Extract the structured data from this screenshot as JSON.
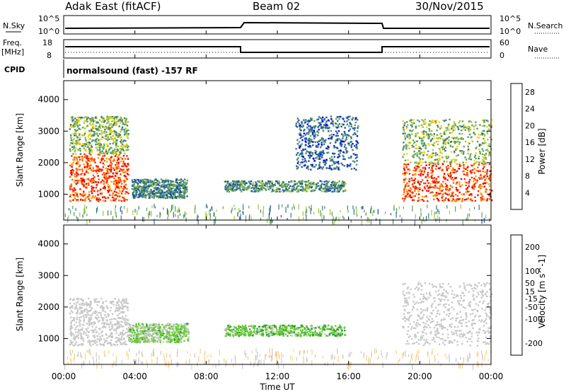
{
  "header": {
    "station": "Adak East (fitACF)",
    "beam": "Beam 02",
    "date": "30/Nov/2015"
  },
  "noise_panel": {
    "left_label": "N.Sky",
    "right_label": "N.Search",
    "ticks_left": [
      "10^5",
      "10^0"
    ],
    "ticks_right": [
      "10^5",
      "10^0"
    ]
  },
  "freq_panel": {
    "left_label_1": "Freq.",
    "left_label_2": "[MHz]",
    "right_label": "Nave",
    "ticks_left": [
      "18",
      "8"
    ],
    "ticks_right": [
      "60",
      "0"
    ]
  },
  "cpid_panel": {
    "label": "CPID",
    "program": "normalsound (fast) -157 RF"
  },
  "x_axis": {
    "label": "Time UT",
    "ticks": [
      "00:00",
      "04:00",
      "08:00",
      "12:00",
      "16:00",
      "20:00",
      "00:00"
    ]
  },
  "colors": {
    "power": [
      "#0000ff",
      "#1d4fae",
      "#3a7a7a",
      "#5aa05a",
      "#9ec83c",
      "#ffd000",
      "#ffa000",
      "#ff6000",
      "#ff2000",
      "#e00000"
    ],
    "velocity": [
      "#ff0000",
      "#ff6a00",
      "#ffa000",
      "#ffd080",
      "#c8c8c8",
      "#c8c8c8",
      "#66cc33",
      "#2ca02c",
      "#1a4faa",
      "#0000cc"
    ]
  },
  "chart_data": [
    {
      "type": "heatmap",
      "panel": "power",
      "ylabel": "Slant Range [km]",
      "ylim": [
        180,
        4600
      ],
      "y_ticks": [
        "1000",
        "2000",
        "3000",
        "4000"
      ],
      "colorbar_label": "Power [dB]",
      "colorbar_ticks": [
        "4",
        "8",
        "12",
        "16",
        "20",
        "24",
        "28"
      ],
      "clim": [
        0,
        30
      ],
      "regions": [
        {
          "t0": 0.3,
          "t1": 3.6,
          "r0": 800,
          "r1": 2300,
          "value": 24,
          "note": "strong"
        },
        {
          "t0": 0.3,
          "t1": 3.6,
          "r0": 2300,
          "r1": 3500,
          "value": 12
        },
        {
          "t0": 3.8,
          "t1": 6.9,
          "r0": 900,
          "r1": 1500,
          "value": 8
        },
        {
          "t0": 9.0,
          "t1": 15.8,
          "r0": 1100,
          "r1": 1450,
          "value": 9
        },
        {
          "t0": 13.0,
          "t1": 16.5,
          "r0": 1800,
          "r1": 3500,
          "value": 6
        },
        {
          "t0": 19.0,
          "t1": 24.0,
          "r0": 800,
          "r1": 2000,
          "value": 24
        },
        {
          "t0": 19.0,
          "t1": 24.0,
          "r0": 2000,
          "r1": 3400,
          "value": 12
        },
        {
          "t0": 0.0,
          "t1": 24.0,
          "r0": 180,
          "r1": 700,
          "value": 10,
          "note": "sparse near-range clutter"
        }
      ]
    },
    {
      "type": "heatmap",
      "panel": "velocity",
      "ylabel": "Slant Range [km]",
      "ylim": [
        180,
        4600
      ],
      "y_ticks": [
        "1000",
        "2000",
        "3000",
        "4000"
      ],
      "colorbar_label": "Velocity [m s^-1]",
      "colorbar_ticks": [
        "200",
        "100",
        "50",
        "15",
        "-15",
        "-50",
        "-100",
        "-200"
      ],
      "clim": [
        -250,
        250
      ],
      "regions": [
        {
          "t0": 0.3,
          "t1": 3.6,
          "r0": 800,
          "r1": 2300,
          "value": 0,
          "note": "ground scatter"
        },
        {
          "t0": 3.6,
          "t1": 7.0,
          "r0": 900,
          "r1": 1500,
          "value": 60
        },
        {
          "t0": 9.0,
          "t1": 15.8,
          "r0": 1100,
          "r1": 1450,
          "value": 80
        },
        {
          "t0": 19.0,
          "t1": 24.0,
          "r0": 800,
          "r1": 2800,
          "value": 0,
          "note": "ground scatter"
        },
        {
          "t0": 0.0,
          "t1": 24.0,
          "r0": 180,
          "r1": 700,
          "value": -50,
          "note": "near-range echoes"
        }
      ]
    }
  ]
}
